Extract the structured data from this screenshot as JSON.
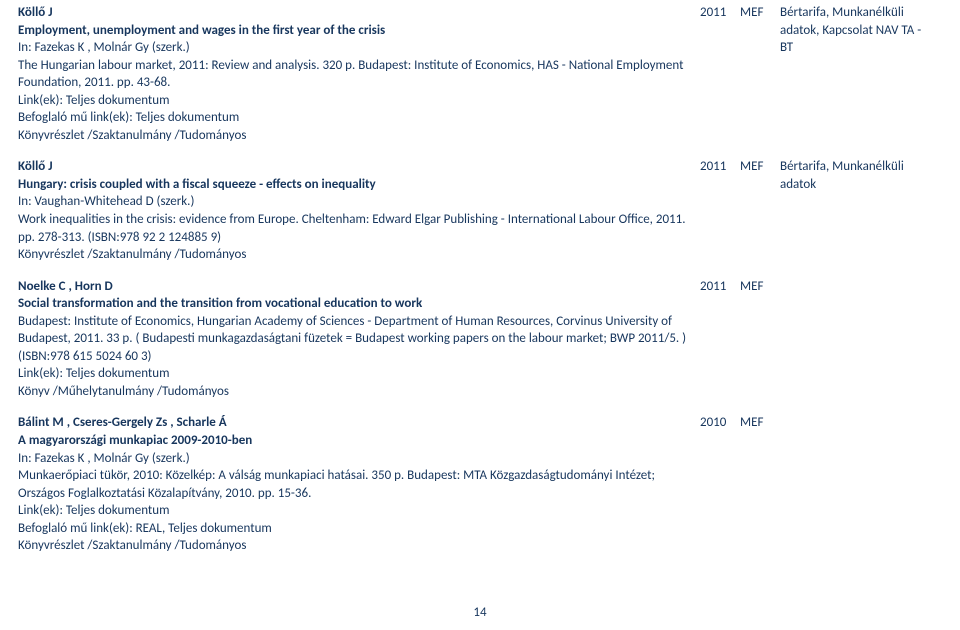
{
  "entries": [
    {
      "author": "Köllő J",
      "title": "Employment, unemployment and wages in the first year of the crisis",
      "in": "In: Fazekas K , Molnár Gy (szerk.)",
      "pub": "The Hungarian labour market, 2011: Review and analysis. 320 p. Budapest: Institute of Economics, HAS - National Employment Foundation, 2011. pp. 43-68.",
      "links": "Link(ek): Teljes dokumentum",
      "bef": "Befoglaló mű link(ek): Teljes dokumentum",
      "type": "Könyvrészlet /Szaktanulmány /Tudományos",
      "year": "2011",
      "code": "MEF",
      "tags": "Bértarifa, Munkanélküli adatok, Kapcsolat NAV TA - BT"
    },
    {
      "author": "Köllő J",
      "title": "Hungary: crisis coupled with a fiscal squeeze - effects on inequality",
      "in": "In: Vaughan-Whitehead D (szerk.)",
      "pub": "Work inequalities in the crisis: evidence from Europe. Cheltenham: Edward Elgar Publishing - International Labour Office, 2011. pp. 278-313. (ISBN:978 92 2 124885 9)",
      "links": "",
      "bef": "",
      "type": "Könyvrészlet /Szaktanulmány /Tudományos",
      "year": "2011",
      "code": "MEF",
      "tags": "Bértarifa, Munkanélküli adatok"
    },
    {
      "author": "Noelke C , Horn D",
      "title": "Social transformation and the transition from vocational education to work",
      "in": "",
      "pub": "Budapest: Institute of Economics, Hungarian Academy of Sciences - Department of Human Resources, Corvinus University of Budapest, 2011. 33 p. ( Budapesti munkagazdaságtani füzetek = Budapest working papers on the labour market; BWP 2011/5. ) (ISBN:978 615 5024 60 3)",
      "links": "Link(ek): Teljes dokumentum",
      "bef": "",
      "type": "Könyv /Műhelytanulmány /Tudományos",
      "year": "2011",
      "code": "MEF",
      "tags": ""
    },
    {
      "author": "Bálint M , Cseres-Gergely Zs , Scharle Á",
      "title": "A magyarországi munkapiac 2009-2010-ben",
      "in": "In: Fazekas K , Molnár Gy (szerk.)",
      "pub": "Munkaerőpiaci tükör, 2010: Közelkép: A válság munkapiaci hatásai. 350 p. Budapest: MTA Közgazdaságtudományi Intézet; Országos Foglalkoztatási Közalapítvány, 2010. pp. 15-36.",
      "links": "Link(ek): Teljes dokumentum",
      "bef": "Befoglaló mű link(ek): REAL, Teljes dokumentum",
      "type": "Könyvrészlet /Szaktanulmány /Tudományos",
      "year": "2010",
      "code": "MEF",
      "tags": ""
    }
  ],
  "page_number": "14"
}
